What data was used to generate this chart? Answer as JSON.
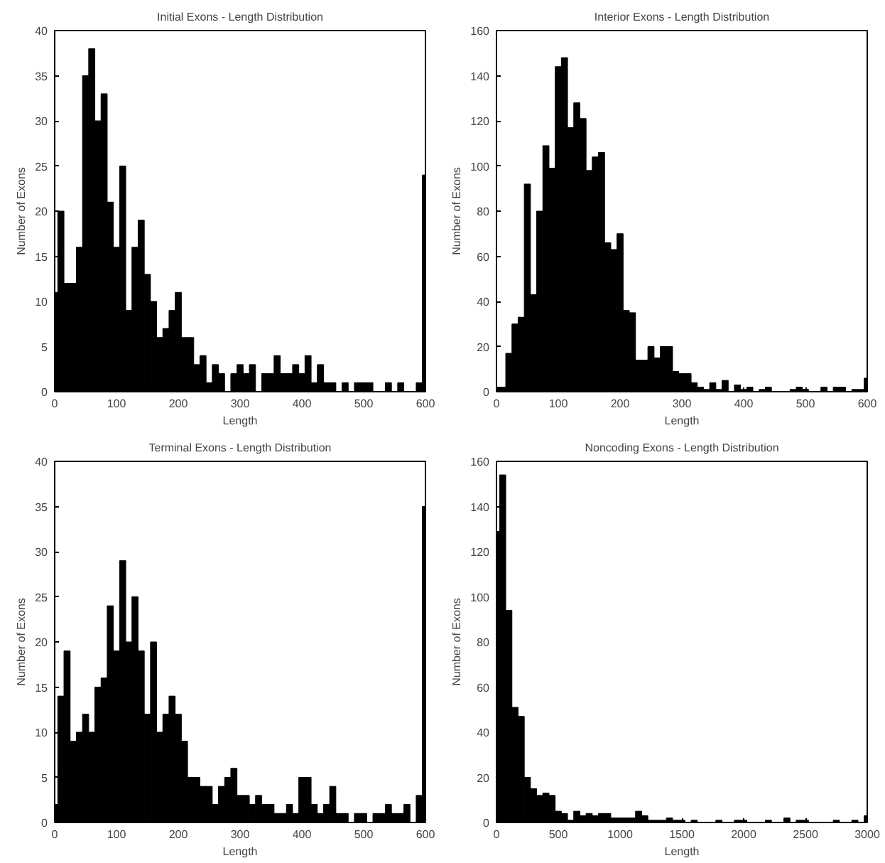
{
  "chart_data": [
    {
      "type": "histogram",
      "title": "Initial Exons - Length Distribution",
      "xlabel": "Length",
      "ylabel": "Number of Exons",
      "color": "#000000",
      "grid": false,
      "bins": [
        0,
        5,
        15,
        25,
        35,
        45,
        55,
        65,
        75,
        85,
        95,
        105,
        115,
        125,
        135,
        145,
        155,
        165,
        175,
        185,
        195,
        205,
        215,
        225,
        235,
        245,
        255,
        265,
        275,
        285,
        295,
        305,
        315,
        325,
        335,
        345,
        355,
        365,
        375,
        385,
        395,
        405,
        415,
        425,
        435,
        445,
        455,
        465,
        475,
        485,
        495,
        505,
        515,
        525,
        535,
        545,
        555,
        565,
        575,
        585,
        595,
        600
      ],
      "values": [
        11,
        20,
        12,
        12,
        16,
        35,
        38,
        30,
        33,
        21,
        16,
        25,
        9,
        16,
        19,
        13,
        10,
        6,
        7,
        9,
        11,
        6,
        6,
        3,
        4,
        1,
        3,
        2,
        0,
        2,
        3,
        2,
        3,
        0,
        2,
        2,
        4,
        2,
        2,
        3,
        2,
        4,
        1,
        3,
        1,
        1,
        0,
        1,
        0,
        1,
        1,
        1,
        0,
        0,
        1,
        0,
        1,
        0,
        0,
        1,
        24
      ],
      "xlim": [
        0,
        600
      ],
      "xticks": [
        0,
        100,
        200,
        300,
        400,
        500,
        600
      ],
      "ylim": [
        0,
        40
      ],
      "yticks": [
        0,
        5,
        10,
        15,
        20,
        25,
        30,
        35,
        40
      ]
    },
    {
      "type": "histogram",
      "title": "Interior Exons - Length Distribution",
      "xlabel": "Length",
      "ylabel": "Number of Exons",
      "color": "#000000",
      "grid": false,
      "bins": [
        0,
        5,
        15,
        25,
        35,
        45,
        55,
        65,
        75,
        85,
        95,
        105,
        115,
        125,
        135,
        145,
        155,
        165,
        175,
        185,
        195,
        205,
        215,
        225,
        235,
        245,
        255,
        265,
        275,
        285,
        295,
        305,
        315,
        325,
        335,
        345,
        355,
        365,
        375,
        385,
        395,
        405,
        415,
        425,
        435,
        445,
        455,
        465,
        475,
        485,
        495,
        505,
        515,
        525,
        535,
        545,
        555,
        565,
        575,
        585,
        595,
        600
      ],
      "values": [
        2,
        2,
        17,
        30,
        33,
        92,
        43,
        80,
        109,
        99,
        144,
        148,
        117,
        128,
        121,
        98,
        104,
        106,
        66,
        63,
        70,
        36,
        35,
        14,
        14,
        20,
        15,
        20,
        20,
        9,
        8,
        8,
        4,
        2,
        1,
        4,
        1,
        5,
        0,
        3,
        1,
        2,
        0,
        1,
        2,
        0,
        0,
        0,
        1,
        2,
        1,
        0,
        0,
        2,
        0,
        2,
        2,
        0,
        1,
        1,
        6
      ],
      "xlim": [
        0,
        600
      ],
      "xticks": [
        0,
        100,
        200,
        300,
        400,
        500,
        600
      ],
      "ylim": [
        0,
        160
      ],
      "yticks": [
        0,
        20,
        40,
        60,
        80,
        100,
        120,
        140,
        160
      ]
    },
    {
      "type": "histogram",
      "title": "Terminal Exons - Length Distribution",
      "xlabel": "Length",
      "ylabel": "Number of Exons",
      "color": "#000000",
      "grid": false,
      "bins": [
        0,
        5,
        15,
        25,
        35,
        45,
        55,
        65,
        75,
        85,
        95,
        105,
        115,
        125,
        135,
        145,
        155,
        165,
        175,
        185,
        195,
        205,
        215,
        225,
        235,
        245,
        255,
        265,
        275,
        285,
        295,
        305,
        315,
        325,
        335,
        345,
        355,
        365,
        375,
        385,
        395,
        405,
        415,
        425,
        435,
        445,
        455,
        465,
        475,
        485,
        495,
        505,
        515,
        525,
        535,
        545,
        555,
        565,
        575,
        585,
        595,
        600
      ],
      "values": [
        2,
        14,
        19,
        9,
        10,
        12,
        10,
        15,
        16,
        24,
        19,
        29,
        20,
        25,
        19,
        12,
        20,
        10,
        12,
        14,
        12,
        9,
        5,
        5,
        4,
        4,
        2,
        4,
        5,
        6,
        3,
        3,
        2,
        3,
        2,
        2,
        1,
        1,
        2,
        1,
        5,
        5,
        2,
        1,
        2,
        4,
        1,
        1,
        0,
        1,
        1,
        0,
        1,
        1,
        2,
        1,
        1,
        2,
        0,
        3,
        35
      ],
      "xlim": [
        0,
        600
      ],
      "xticks": [
        0,
        100,
        200,
        300,
        400,
        500,
        600
      ],
      "ylim": [
        0,
        40
      ],
      "yticks": [
        0,
        5,
        10,
        15,
        20,
        25,
        30,
        35,
        40
      ]
    },
    {
      "type": "histogram",
      "title": "Noncoding Exons - Length Distribution",
      "xlabel": "Length",
      "ylabel": "Number of Exons",
      "color": "#000000",
      "grid": false,
      "bins": [
        0,
        25,
        75,
        125,
        175,
        225,
        275,
        325,
        375,
        425,
        475,
        525,
        575,
        625,
        675,
        725,
        775,
        825,
        875,
        925,
        975,
        1025,
        1075,
        1125,
        1175,
        1225,
        1275,
        1325,
        1375,
        1425,
        1475,
        1525,
        1575,
        1625,
        1675,
        1725,
        1775,
        1825,
        1875,
        1925,
        1975,
        2025,
        2075,
        2125,
        2175,
        2225,
        2275,
        2325,
        2375,
        2425,
        2475,
        2525,
        2575,
        2625,
        2675,
        2725,
        2775,
        2825,
        2875,
        2925,
        2975,
        3000
      ],
      "values": [
        129,
        154,
        94,
        51,
        47,
        20,
        15,
        12,
        13,
        12,
        5,
        4,
        1,
        5,
        3,
        4,
        3,
        4,
        4,
        2,
        2,
        2,
        2,
        5,
        3,
        1,
        1,
        1,
        2,
        1,
        1,
        0,
        1,
        0,
        0,
        0,
        1,
        0,
        0,
        1,
        1,
        0,
        0,
        0,
        1,
        0,
        0,
        2,
        0,
        1,
        1,
        0,
        0,
        0,
        0,
        1,
        0,
        0,
        1,
        0,
        3
      ],
      "xlim": [
        0,
        3000
      ],
      "xticks": [
        0,
        500,
        1000,
        1500,
        2000,
        2500,
        3000
      ],
      "ylim": [
        0,
        160
      ],
      "yticks": [
        0,
        20,
        40,
        60,
        80,
        100,
        120,
        140,
        160
      ]
    }
  ]
}
